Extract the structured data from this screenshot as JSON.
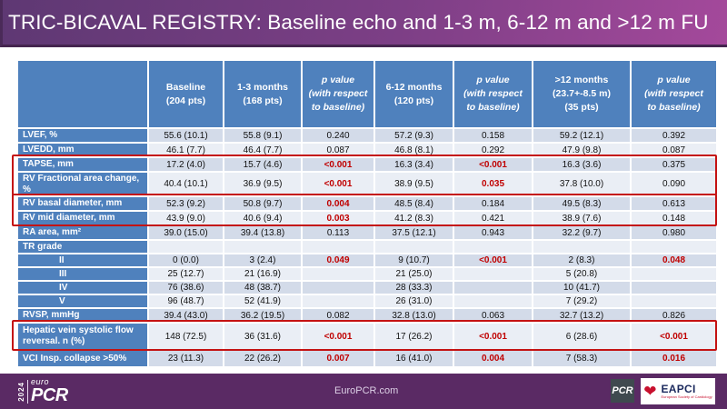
{
  "title": "TRIC-BICAVAL REGISTRY: Baseline echo and 1-3 m, 6-12 m and >12 m FU",
  "colors": {
    "header_blue": "#4f81bd",
    "row_dark": "#d3dbe9",
    "row_light": "#eaeef5",
    "p_red": "#c00000",
    "box_red": "#c41212",
    "footer_purple": "#5a2a64",
    "title_gradient_left": "#5e3873",
    "title_gradient_right": "#a4499b"
  },
  "table": {
    "headers": [
      {
        "lines": [
          "Baseline",
          "(204 pts)"
        ],
        "italic": false
      },
      {
        "lines": [
          "1-3 months",
          "(168 pts)"
        ],
        "italic": false
      },
      {
        "lines": [
          "p value",
          "(with respect",
          "to baseline)"
        ],
        "italic": true
      },
      {
        "lines": [
          "6-12 months",
          "(120 pts)"
        ],
        "italic": false
      },
      {
        "lines": [
          "p value",
          "(with respect",
          "to baseline)"
        ],
        "italic": true
      },
      {
        "lines": [
          ">12 months",
          "(23.7+-8.5 m)",
          "(35 pts)"
        ],
        "italic": false
      },
      {
        "lines": [
          "p value",
          "(with respect",
          "to baseline)"
        ],
        "italic": true
      }
    ],
    "rows": [
      {
        "label": "LVEF, %",
        "cells": [
          "55.6 (10.1)",
          "55.8 (9.1)",
          "0.240",
          "57.2 (9.3)",
          "0.158",
          "59.2 (12.1)",
          "0.392"
        ],
        "red": []
      },
      {
        "label": "LVEDD, mm",
        "cells": [
          "46.1 (7.7)",
          "46.4 (7.7)",
          "0.087",
          "46.8 (8.1)",
          "0.292",
          "47.9 (9.8)",
          "0.087"
        ],
        "red": []
      },
      {
        "label": "TAPSE, mm",
        "cells": [
          "17.2 (4.0)",
          "15.7 (4.6)",
          "<0.001",
          "16.3 (3.4)",
          "<0.001",
          "16.3 (3.6)",
          "0.375"
        ],
        "red": [
          2,
          4
        ]
      },
      {
        "label": "RV Fractional area change, %",
        "cells": [
          "40.4 (10.1)",
          "36.9 (9.5)",
          "<0.001",
          "38.9 (9.5)",
          "0.035",
          "37.8 (10.0)",
          "0.090"
        ],
        "red": [
          2,
          4
        ]
      },
      {
        "label": "RV basal diameter, mm",
        "cells": [
          "52.3 (9.2)",
          "50.8 (9.7)",
          "0.004",
          "48.5 (8.4)",
          "0.184",
          "49.5 (8.3)",
          "0.613"
        ],
        "red": [
          2
        ]
      },
      {
        "label": "RV mid diameter, mm",
        "cells": [
          "43.9 (9.0)",
          "40.6 (9.4)",
          "0.003",
          "41.2 (8.3)",
          "0.421",
          "38.9 (7.6)",
          "0.148"
        ],
        "red": [
          2
        ]
      },
      {
        "label": "RA area, mm²",
        "cells": [
          "39.0 (15.0)",
          "39.4 (13.8)",
          "0.113",
          "37.5 (12.1)",
          "0.943",
          "32.2 (9.7)",
          "0.980"
        ],
        "red": []
      },
      {
        "label": "TR grade",
        "cells": [
          "",
          "",
          "",
          "",
          "",
          "",
          ""
        ],
        "red": []
      },
      {
        "label": "II",
        "indent": true,
        "cells": [
          "0 (0.0)",
          "3 (2.4)",
          "0.049",
          "9 (10.7)",
          "<0.001",
          "2 (8.3)",
          "0.048"
        ],
        "red": [
          2,
          4,
          6
        ]
      },
      {
        "label": "III",
        "indent": true,
        "cells": [
          "25 (12.7)",
          "21 (16.9)",
          "",
          "21 (25.0)",
          "",
          "5 (20.8)",
          ""
        ],
        "red": []
      },
      {
        "label": "IV",
        "indent": true,
        "cells": [
          "76 (38.6)",
          "48 (38.7)",
          "",
          "28 (33.3)",
          "",
          "10 (41.7)",
          ""
        ],
        "red": []
      },
      {
        "label": "V",
        "indent": true,
        "cells": [
          "96 (48.7)",
          "52 (41.9)",
          "",
          "26 (31.0)",
          "",
          "7 (29.2)",
          ""
        ],
        "red": []
      },
      {
        "label": "RVSP, mmHg",
        "cells": [
          "39.4 (43.0)",
          "36.2 (19.5)",
          "0.082",
          "32.8 (13.0)",
          "0.063",
          "32.7 (13.2)",
          "0.826"
        ],
        "red": []
      },
      {
        "label": "Hepatic vein systolic flow reversal. n (%)",
        "cells": [
          "148 (72.5)",
          "36 (31.6)",
          "<0.001",
          "17 (26.2)",
          "<0.001",
          "6 (28.6)",
          "<0.001"
        ],
        "red": [
          2,
          4,
          6
        ]
      },
      {
        "label": "VCI Insp. collapse >50%",
        "cells": [
          "23 (11.3)",
          "22 (26.2)",
          "0.007",
          "16 (41.0)",
          "0.004",
          "7 (58.3)",
          "0.016"
        ],
        "red": [
          2,
          4,
          6
        ]
      }
    ]
  },
  "footer": {
    "year": "2024",
    "euro": "euro",
    "pcr": "PCR",
    "site": "EuroPCR.com",
    "pcr_logo": "PCR",
    "eapci_name": "EAPCI",
    "eapci_sub": "European Society of Cardiology",
    "heart_icon": "heart-icon"
  }
}
